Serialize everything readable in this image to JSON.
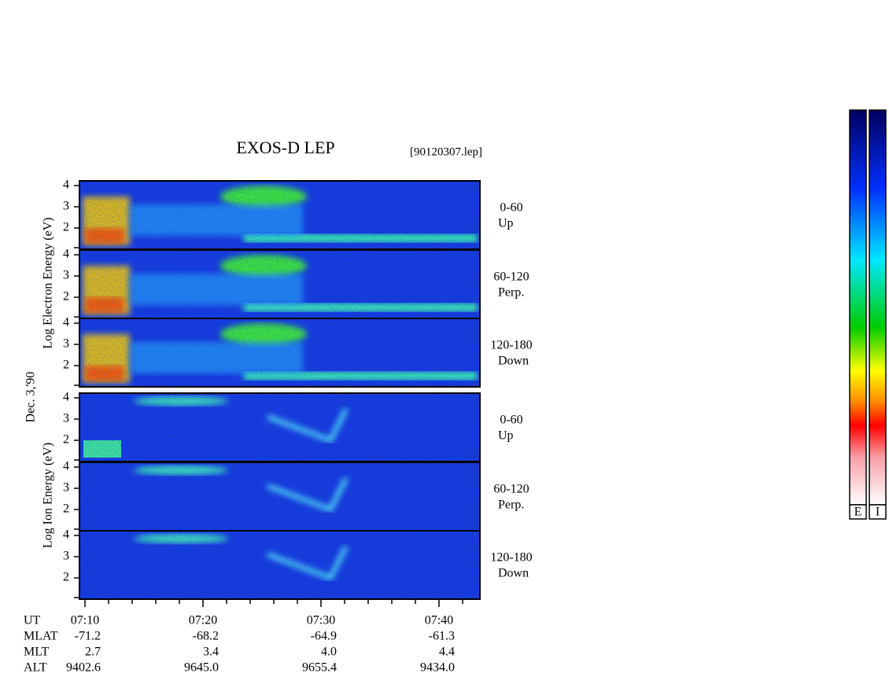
{
  "title": "EXOS-D LEP",
  "file": "[90120307.lep]",
  "date": "Dec. 3,'90",
  "groups": [
    {
      "label": "Log Electron Energy (eV)",
      "panels": [
        {
          "angle": "0-60",
          "direction": "Up",
          "yticks": [
            4,
            3,
            2
          ]
        },
        {
          "angle": "60-120",
          "direction": "Perp.",
          "yticks": [
            4,
            3,
            2
          ]
        },
        {
          "angle": "120-180",
          "direction": "Down",
          "yticks": [
            4,
            3,
            2
          ]
        }
      ]
    },
    {
      "label": "Log Ion Energy (eV)",
      "panels": [
        {
          "angle": "0-60",
          "direction": "Up",
          "yticks": [
            4,
            3,
            2
          ]
        },
        {
          "angle": "60-120",
          "direction": "Perp.",
          "yticks": [
            4,
            3,
            2
          ]
        },
        {
          "angle": "120-180",
          "direction": "Down",
          "yticks": [
            4,
            3,
            2
          ]
        }
      ]
    }
  ],
  "time_axis": {
    "label": "UT",
    "ticks": [
      "07:10",
      "07:20",
      "07:30",
      "07:40"
    ]
  },
  "ephemeris": [
    {
      "label": "MLAT",
      "values": [
        "-71.2",
        "-68.2",
        "-64.9",
        "-61.3"
      ]
    },
    {
      "label": "MLT",
      "values": [
        "2.7",
        "3.4",
        "4.0",
        "4.4"
      ]
    },
    {
      "label": "ALT",
      "values": [
        "9402.6",
        "9645.0",
        "9655.4",
        "9434.0"
      ]
    }
  ],
  "colorbars": [
    "E",
    "I"
  ]
}
